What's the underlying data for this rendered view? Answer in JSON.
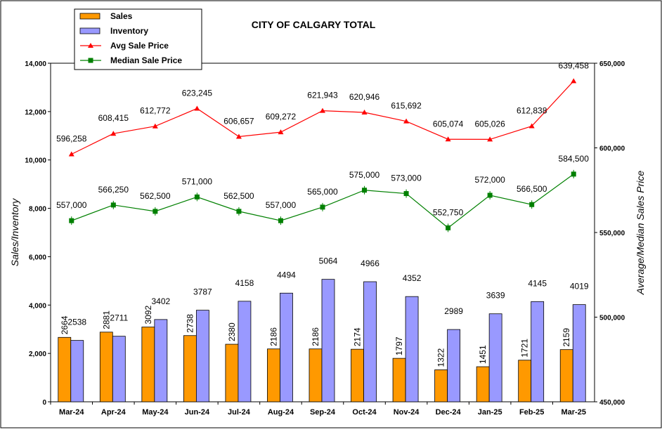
{
  "chart_data": {
    "type": "bar",
    "title": "CITY OF CALGARY TOTAL",
    "categories": [
      "Mar-24",
      "Apr-24",
      "May-24",
      "Jun-24",
      "Jul-24",
      "Aug-24",
      "Sep-24",
      "Oct-24",
      "Nov-24",
      "Dec-24",
      "Jan-25",
      "Feb-25",
      "Mar-25"
    ],
    "ylabel": "Sales/Inventory",
    "y2label": "Average/Median Sales Price",
    "ylim": [
      0,
      14000
    ],
    "y2lim": [
      450000,
      650000
    ],
    "yticks": [
      "0",
      "2,000",
      "4,000",
      "6,000",
      "8,000",
      "10,000",
      "12,000",
      "14,000"
    ],
    "y2ticks": [
      "450,000",
      "500,000",
      "550,000",
      "600,000",
      "650,000"
    ],
    "legend_position": "top-left",
    "series": [
      {
        "name": "Sales",
        "type": "bar",
        "axis": "left",
        "color": "#ff9900",
        "values": [
          2664,
          2881,
          3092,
          2738,
          2380,
          2186,
          2186,
          2174,
          1797,
          1322,
          1451,
          1721,
          2159
        ],
        "labels": [
          "2664",
          "2881",
          "3092",
          "2738",
          "2380",
          "2186",
          "2186",
          "2174",
          "1797",
          "1322",
          "1451",
          "1721",
          "2159"
        ]
      },
      {
        "name": "Inventory",
        "type": "bar",
        "axis": "left",
        "color": "#9999ff",
        "values": [
          2538,
          2711,
          3402,
          3787,
          4158,
          4494,
          5064,
          4966,
          4352,
          2989,
          3639,
          4145,
          4019
        ],
        "labels": [
          "2538",
          "2711",
          "3402",
          "3787",
          "4158",
          "4494",
          "5064",
          "4966",
          "4352",
          "2989",
          "3639",
          "4145",
          "4019"
        ]
      },
      {
        "name": "Avg Sale Price",
        "type": "line",
        "axis": "right",
        "color": "#ff0000",
        "marker": "triangle",
        "values": [
          596258,
          608415,
          612772,
          623245,
          606657,
          609272,
          621943,
          620946,
          615692,
          605074,
          605026,
          612838,
          639458
        ],
        "labels": [
          "596,258",
          "608,415",
          "612,772",
          "623,245",
          "606,657",
          "609,272",
          "621,943",
          "620,946",
          "615,692",
          "605,074",
          "605,026",
          "612,838",
          "639,458"
        ]
      },
      {
        "name": "Median Sale Price",
        "type": "line",
        "axis": "right",
        "color": "#008000",
        "marker": "square",
        "values": [
          557000,
          566250,
          562500,
          571000,
          562500,
          557000,
          565000,
          575000,
          573000,
          552750,
          572000,
          566500,
          584500
        ],
        "labels": [
          "557,000",
          "566,250",
          "562,500",
          "571,000",
          "562,500",
          "557,000",
          "565,000",
          "575,000",
          "573,000",
          "552,750",
          "572,000",
          "566,500",
          "584,500"
        ]
      }
    ]
  }
}
